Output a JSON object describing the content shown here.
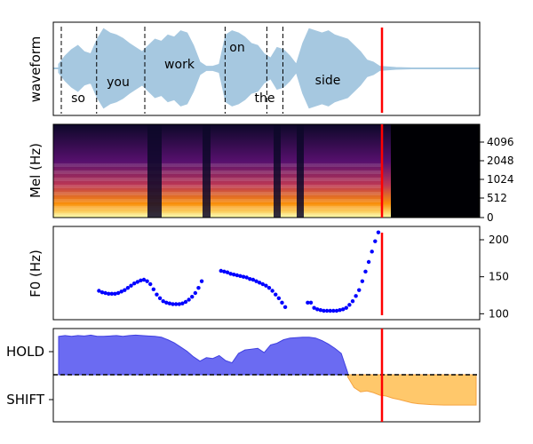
{
  "chart_data": [
    {
      "panel": "waveform",
      "type": "area",
      "ylabel": "waveform",
      "words": [
        {
          "text": "so",
          "t": 0.0
        },
        {
          "text": "you",
          "t": 0.11
        },
        {
          "text": "work",
          "t": 0.26
        },
        {
          "text": "on",
          "t": 0.51
        },
        {
          "text": "the",
          "t": 0.64
        },
        {
          "text": "side",
          "t": 0.69
        }
      ],
      "boundaries": [
        0.0,
        0.11,
        0.26,
        0.51,
        0.64,
        0.69
      ],
      "cutoff": 1.0,
      "duration": 1.3,
      "envelope": {
        "t": [
          0.0,
          0.02,
          0.04,
          0.06,
          0.08,
          0.1,
          0.12,
          0.14,
          0.16,
          0.18,
          0.2,
          0.22,
          0.24,
          0.26,
          0.28,
          0.3,
          0.32,
          0.34,
          0.36,
          0.38,
          0.4,
          0.42,
          0.44,
          0.46,
          0.48,
          0.5,
          0.52,
          0.54,
          0.56,
          0.58,
          0.6,
          0.62,
          0.64,
          0.66,
          0.68,
          0.7,
          0.72,
          0.74,
          0.76,
          0.78,
          0.8,
          0.82,
          0.84,
          0.86,
          0.88,
          0.9,
          0.92,
          0.94,
          0.96,
          0.98,
          1.0,
          1.05,
          1.1,
          1.2,
          1.3
        ],
        "amp": [
          0.1,
          0.3,
          0.45,
          0.55,
          0.4,
          0.35,
          0.7,
          0.95,
          0.85,
          0.8,
          0.72,
          0.6,
          0.5,
          0.4,
          0.55,
          0.7,
          0.65,
          0.8,
          0.75,
          0.9,
          0.85,
          0.55,
          0.15,
          0.05,
          0.05,
          0.1,
          0.8,
          0.9,
          0.85,
          0.75,
          0.6,
          0.55,
          0.35,
          0.25,
          0.5,
          0.45,
          0.3,
          0.1,
          0.6,
          0.95,
          0.9,
          0.85,
          0.9,
          0.8,
          0.75,
          0.7,
          0.55,
          0.4,
          0.2,
          0.15,
          0.05,
          0.02,
          0.01,
          0.01,
          0.01
        ]
      }
    },
    {
      "panel": "mel",
      "type": "heatmap",
      "ylabel": "Mel (Hz)",
      "yticks": [
        "0",
        "512",
        "1024",
        "2048",
        "4096"
      ],
      "cutoff": 1.0
    },
    {
      "panel": "f0",
      "type": "scatter",
      "ylabel": "F0 (Hz)",
      "yticks": [
        "100",
        "150",
        "200"
      ],
      "ylim": [
        92,
        218
      ],
      "cutoff": 1.0,
      "color": "#0000ff",
      "segments": [
        {
          "t": [
            0.12,
            0.13,
            0.14,
            0.15,
            0.16,
            0.17,
            0.18,
            0.19,
            0.2,
            0.21,
            0.22,
            0.23,
            0.24,
            0.25,
            0.26,
            0.27,
            0.28,
            0.29,
            0.3,
            0.31,
            0.32,
            0.33,
            0.34,
            0.35,
            0.36,
            0.37,
            0.38,
            0.39,
            0.4,
            0.41,
            0.42,
            0.43,
            0.44
          ],
          "f0": [
            131,
            129,
            128,
            127,
            127,
            127,
            128,
            130,
            132,
            135,
            138,
            141,
            143,
            145,
            146,
            144,
            140,
            133,
            126,
            121,
            117,
            115,
            114,
            113,
            113,
            113,
            114,
            116,
            119,
            123,
            128,
            135,
            144
          ]
        },
        {
          "t": [
            0.5,
            0.51,
            0.52,
            0.53,
            0.54,
            0.55,
            0.56,
            0.57,
            0.58,
            0.59,
            0.6,
            0.61,
            0.62,
            0.63,
            0.64,
            0.65,
            0.66,
            0.67,
            0.68,
            0.69,
            0.7
          ],
          "f0": [
            158,
            157,
            156,
            154,
            153,
            152,
            151,
            150,
            149,
            147,
            146,
            144,
            142,
            140,
            138,
            135,
            131,
            126,
            121,
            115,
            109
          ]
        },
        {
          "t": [
            0.77,
            0.78,
            0.79,
            0.8,
            0.81,
            0.82,
            0.83,
            0.84,
            0.85,
            0.86,
            0.87,
            0.88,
            0.89,
            0.9,
            0.91,
            0.92,
            0.93,
            0.94,
            0.95,
            0.96,
            0.97,
            0.98,
            0.99
          ],
          "f0": [
            115,
            115,
            108,
            106,
            105,
            104,
            104,
            104,
            104,
            104,
            105,
            106,
            108,
            112,
            117,
            124,
            132,
            144,
            157,
            170,
            184,
            198,
            210
          ]
        }
      ]
    },
    {
      "panel": "turn",
      "type": "area",
      "yticks": [
        "HOLD",
        "SHIFT"
      ],
      "cutoff": 1.0,
      "colors": {
        "hold": "#6b6bf2",
        "shift": "#ffc86b"
      },
      "hold": {
        "t": [
          0.0,
          0.02,
          0.04,
          0.06,
          0.08,
          0.1,
          0.12,
          0.14,
          0.16,
          0.18,
          0.2,
          0.22,
          0.24,
          0.26,
          0.28,
          0.3,
          0.32,
          0.34,
          0.36,
          0.38,
          0.4,
          0.42,
          0.44,
          0.46,
          0.48,
          0.5,
          0.52,
          0.54,
          0.56,
          0.58,
          0.6,
          0.62,
          0.64,
          0.66,
          0.68,
          0.7,
          0.72,
          0.74,
          0.76,
          0.78,
          0.8,
          0.82,
          0.84,
          0.86,
          0.88,
          0.9
        ],
        "v": [
          0.9,
          0.92,
          0.9,
          0.92,
          0.91,
          0.93,
          0.9,
          0.9,
          0.91,
          0.92,
          0.9,
          0.92,
          0.93,
          0.92,
          0.91,
          0.9,
          0.88,
          0.82,
          0.75,
          0.65,
          0.55,
          0.42,
          0.32,
          0.4,
          0.38,
          0.45,
          0.33,
          0.28,
          0.5,
          0.58,
          0.6,
          0.62,
          0.52,
          0.7,
          0.74,
          0.82,
          0.86,
          0.87,
          0.88,
          0.88,
          0.86,
          0.8,
          0.72,
          0.62,
          0.5,
          0.05
        ]
      },
      "shift": {
        "t": [
          0.9,
          0.92,
          0.94,
          0.96,
          0.98,
          1.0,
          1.02,
          1.04,
          1.06,
          1.08,
          1.1,
          1.12,
          1.16,
          1.2,
          1.25,
          1.3
        ],
        "v": [
          0.05,
          0.3,
          0.4,
          0.38,
          0.42,
          0.48,
          0.5,
          0.55,
          0.58,
          0.62,
          0.66,
          0.68,
          0.7,
          0.71,
          0.71,
          0.71
        ]
      }
    }
  ]
}
